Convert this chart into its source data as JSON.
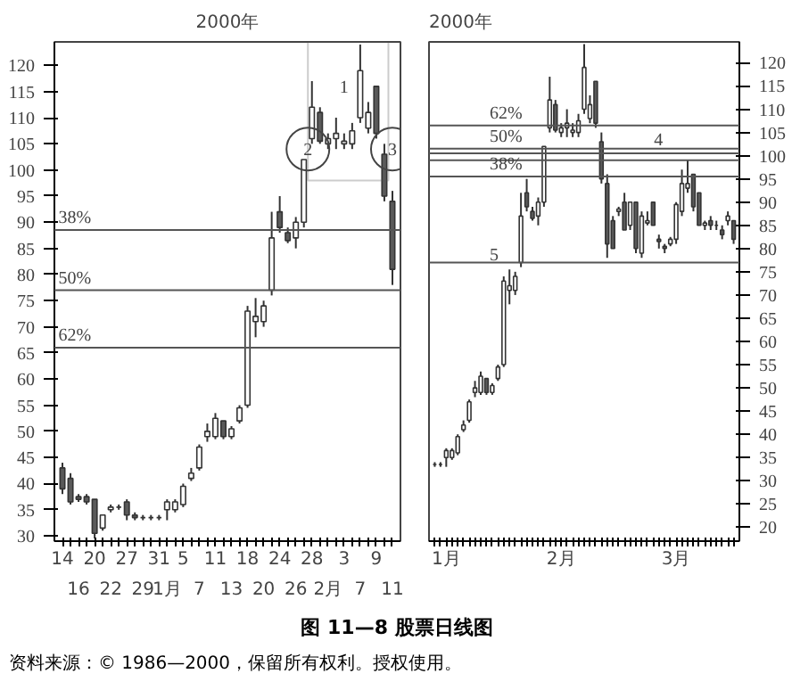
{
  "chart_data": [
    {
      "type": "candlestick",
      "title": "2000年",
      "categories": [
        "14",
        null,
        "16",
        null,
        "20",
        null,
        "22",
        null,
        "27",
        null,
        "29",
        null,
        "31",
        "1月",
        null,
        "5",
        null,
        "7",
        null,
        "11",
        null,
        "13",
        null,
        "18",
        null,
        "20",
        null,
        "24",
        null,
        "26",
        null,
        "28",
        null,
        "2月",
        null,
        "3",
        null,
        "7",
        null,
        "9",
        null,
        "11"
      ],
      "ohlc": [
        [
          43,
          44,
          38,
          39
        ],
        [
          41,
          42,
          36,
          36.5
        ],
        [
          37.5,
          38,
          36.5,
          37
        ],
        [
          37.5,
          38,
          36,
          36.5
        ],
        [
          37,
          37,
          29.5,
          30.5
        ],
        [
          31.5,
          34,
          31,
          34
        ],
        [
          35,
          36,
          34.5,
          35.5
        ],
        [
          35.5,
          36,
          35,
          35.5
        ],
        [
          36.5,
          37,
          33,
          34
        ],
        [
          34,
          34.5,
          33,
          33.5
        ],
        [
          33.5,
          34,
          33,
          33.5
        ],
        [
          33.5,
          34,
          33,
          33.5
        ],
        [
          33.5,
          34,
          33,
          33.5
        ],
        [
          35,
          37,
          33,
          36.5
        ],
        [
          35,
          37,
          34.5,
          36.5
        ],
        [
          36,
          40,
          35.5,
          39.5
        ],
        [
          41,
          43,
          40.5,
          42
        ],
        [
          43,
          47.5,
          42.5,
          47
        ],
        [
          49,
          51.5,
          48,
          50
        ],
        [
          49,
          53.5,
          48.5,
          52.5
        ],
        [
          52,
          52,
          48.5,
          49
        ],
        [
          49,
          51,
          48.5,
          50.5
        ],
        [
          52,
          55,
          51.5,
          54.5
        ],
        [
          55,
          74,
          54.5,
          73
        ],
        [
          71,
          75.5,
          68,
          72
        ],
        [
          71,
          75,
          70,
          74
        ],
        [
          77,
          92,
          76,
          87
        ],
        [
          92,
          95,
          88,
          89
        ],
        [
          88,
          89,
          86,
          86.5
        ],
        [
          87,
          91,
          85,
          90
        ],
        [
          90,
          102,
          89,
          102
        ],
        [
          106,
          117,
          105,
          112
        ],
        [
          111,
          112,
          105,
          105.5
        ],
        [
          105,
          107,
          104,
          106
        ],
        [
          106,
          110,
          104,
          107
        ],
        [
          105,
          107,
          104,
          105.5
        ],
        [
          105,
          109,
          104,
          107.5
        ],
        [
          110,
          124,
          109,
          119
        ],
        [
          108,
          113,
          107,
          111
        ],
        [
          116,
          116,
          106,
          107
        ],
        [
          103,
          105,
          94,
          95
        ],
        [
          94,
          96,
          78,
          81
        ]
      ],
      "ylim": [
        29,
        124.5
      ],
      "yticks": [
        30,
        35,
        40,
        45,
        50,
        55,
        60,
        65,
        70,
        75,
        80,
        85,
        90,
        95,
        100,
        105,
        110,
        115,
        120
      ],
      "ref_lines": [
        {
          "axis": "y",
          "value": 88.5
        },
        {
          "axis": "y",
          "value": 77
        },
        {
          "axis": "y",
          "value": 66
        }
      ],
      "annotations": [
        "1",
        "2",
        "3",
        {
          "text": "38%",
          "y": 88.5
        },
        {
          "text": "50%",
          "y": 77
        },
        {
          "text": "62%",
          "y": 66
        }
      ]
    },
    {
      "type": "candlestick",
      "title": "2000年",
      "categories": [
        null,
        null,
        "1月",
        null,
        null,
        null,
        null,
        null,
        null,
        null,
        null,
        null,
        null,
        null,
        null,
        null,
        null,
        null,
        null,
        null,
        null,
        null,
        "2月",
        null,
        null,
        null,
        null,
        null,
        null,
        null,
        null,
        null,
        null,
        null,
        null,
        null,
        null,
        null,
        null,
        null,
        null,
        null,
        "3月",
        null,
        null,
        null,
        null,
        null,
        null,
        null,
        null,
        null,
        null
      ],
      "ohlc": [
        [
          33.5,
          34,
          33,
          33.5
        ],
        [
          33.5,
          34,
          33,
          33.5
        ],
        [
          35,
          37,
          33,
          36.5
        ],
        [
          35,
          37,
          34.5,
          36.5
        ],
        [
          36,
          40,
          35.5,
          39.5
        ],
        [
          41,
          43,
          40.5,
          42
        ],
        [
          43,
          47.5,
          42.5,
          47
        ],
        [
          49,
          51.5,
          48,
          50
        ],
        [
          49,
          53.5,
          48.5,
          52.5
        ],
        [
          52,
          52,
          48.5,
          49
        ],
        [
          49,
          51,
          48.5,
          50.5
        ],
        [
          52,
          55,
          51.5,
          54.5
        ],
        [
          55,
          74,
          54.5,
          73
        ],
        [
          71,
          75.5,
          68,
          72
        ],
        [
          71,
          75,
          70,
          74
        ],
        [
          77,
          92,
          76,
          87
        ],
        [
          92,
          95,
          88,
          89
        ],
        [
          88,
          89,
          86,
          86.5
        ],
        [
          87,
          91,
          85,
          90
        ],
        [
          90,
          102,
          89,
          102
        ],
        [
          106,
          117,
          105,
          112
        ],
        [
          111,
          112,
          105,
          105.5
        ],
        [
          105,
          107,
          104,
          106
        ],
        [
          106,
          110,
          104,
          107
        ],
        [
          105,
          107,
          104,
          105.5
        ],
        [
          105,
          109,
          104,
          107.5
        ],
        [
          110,
          124,
          109,
          119
        ],
        [
          108,
          113,
          107,
          111
        ],
        [
          116,
          116,
          106,
          107
        ],
        [
          103,
          105,
          94,
          95
        ],
        [
          94,
          96,
          78,
          81
        ],
        [
          86,
          87,
          80,
          80
        ],
        [
          88,
          89,
          87,
          88.5
        ],
        [
          90,
          92,
          84,
          84
        ],
        [
          85,
          90,
          84,
          90
        ],
        [
          90,
          90,
          79,
          80
        ],
        [
          79,
          88,
          78,
          87
        ],
        [
          85.5,
          88,
          85,
          86
        ],
        [
          90,
          90,
          85,
          85
        ],
        [
          82,
          83,
          80,
          81.5
        ],
        [
          80.5,
          81,
          79,
          80
        ],
        [
          81,
          82.5,
          80.5,
          82
        ],
        [
          82,
          90,
          81,
          89.5
        ],
        [
          88,
          97,
          87,
          94
        ],
        [
          93,
          99,
          92,
          94
        ],
        [
          96,
          96,
          88,
          89
        ],
        [
          92,
          92,
          85,
          85
        ],
        [
          85,
          86,
          84,
          85.5
        ],
        [
          86,
          87,
          84,
          85
        ],
        [
          85,
          86,
          84,
          85
        ],
        [
          84,
          85,
          82,
          83
        ],
        [
          86,
          88,
          85,
          87
        ],
        [
          86,
          86,
          81,
          82
        ]
      ],
      "ylim": [
        17,
        124.5
      ],
      "yticks": [
        20,
        25,
        30,
        35,
        40,
        45,
        50,
        55,
        60,
        65,
        70,
        75,
        80,
        85,
        90,
        95,
        100,
        105,
        110,
        115,
        120
      ],
      "ref_lines": [
        {
          "axis": "y",
          "value": 106.5
        },
        {
          "axis": "y",
          "value": 101.5
        },
        {
          "axis": "y",
          "value": 100.5
        },
        {
          "axis": "y",
          "value": 99
        },
        {
          "axis": "y",
          "value": 95.5
        },
        {
          "axis": "y",
          "value": 77
        }
      ],
      "annotations": [
        "4",
        {
          "text": "62%",
          "y": 106.5
        },
        {
          "text": "50%",
          "y": 101.5
        },
        {
          "text": "38%",
          "y": 95.5
        },
        {
          "text": "5",
          "y": 77
        }
      ]
    },
    {
      "type": "other",
      "title": "图 11—8 股票日线图",
      "annotations": [
        "资料来源：© 1986—2000，保留所有权利。授权使用。"
      ]
    }
  ]
}
